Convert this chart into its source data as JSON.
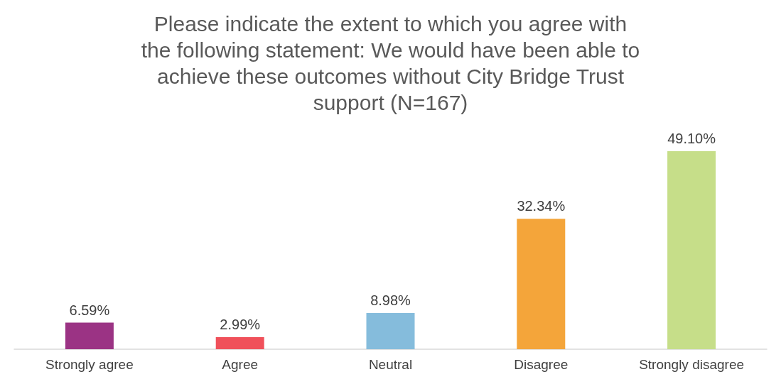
{
  "chart_data": {
    "type": "bar",
    "title": "Please indicate the extent to which you agree with the following statement: We would have been able to achieve these outcomes without City Bridge Trust support (N=167)",
    "categories": [
      "Strongly agree",
      "Agree",
      "Neutral",
      "Disagree",
      "Strongly disagree"
    ],
    "values": [
      6.59,
      2.99,
      8.98,
      32.34,
      49.1
    ],
    "value_labels": [
      "6.59%",
      "2.99%",
      "8.98%",
      "32.34%",
      "49.10%"
    ],
    "colors": [
      "#9b3384",
      "#f0505a",
      "#85bcdc",
      "#f4a53a",
      "#c6de89"
    ]
  }
}
